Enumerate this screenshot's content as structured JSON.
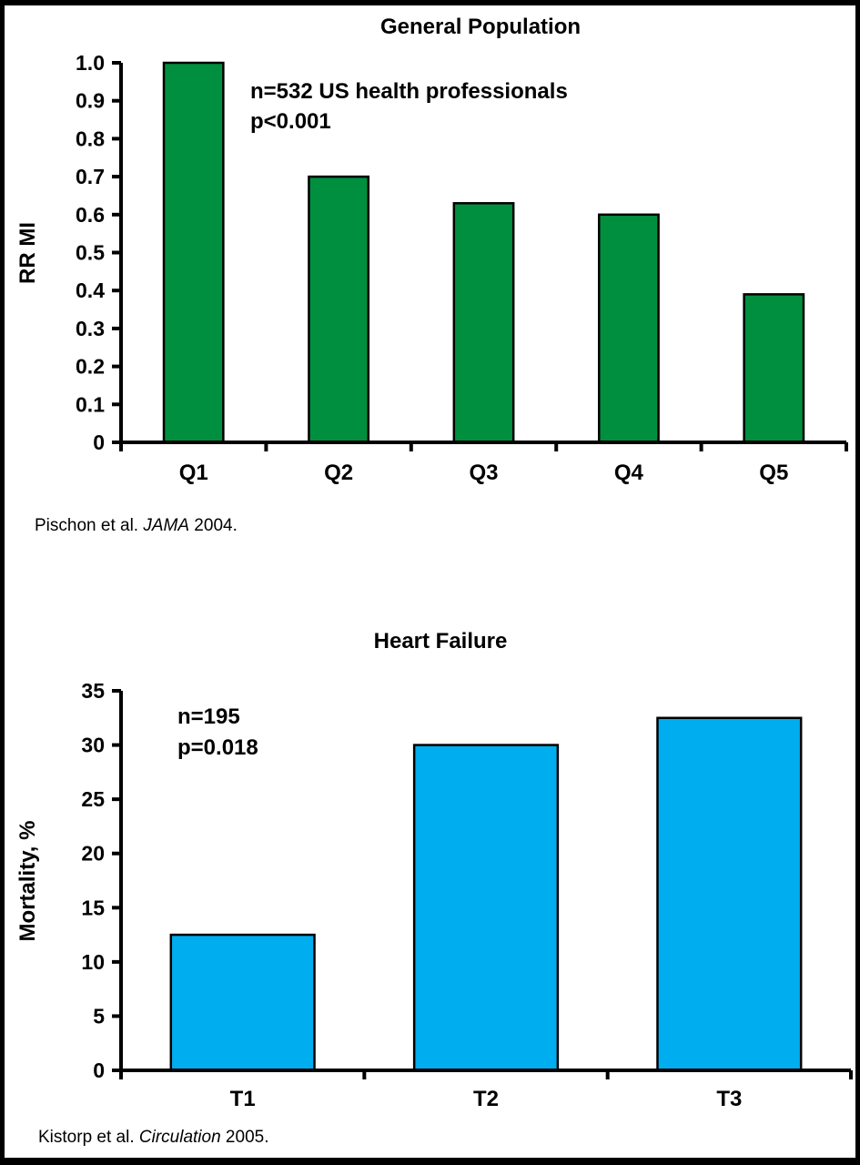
{
  "chart_data": [
    {
      "type": "bar",
      "title": "General Population",
      "ylabel": "RR MI",
      "xlabel": "",
      "categories": [
        "Q1",
        "Q2",
        "Q3",
        "Q4",
        "Q5"
      ],
      "values": [
        1.0,
        0.7,
        0.63,
        0.6,
        0.39
      ],
      "ylim": [
        0,
        1.0
      ],
      "yticks": [
        "0",
        "0.1",
        "0.2",
        "0.3",
        "0.4",
        "0.5",
        "0.6",
        "0.7",
        "0.8",
        "0.9",
        "1.0"
      ],
      "annotations": [
        "n=532 US health professionals",
        "p<0.001"
      ],
      "source": {
        "authors": "Pischon et al. ",
        "journal": "JAMA",
        "year": " 2004."
      },
      "bar_color": "#008f3e",
      "grid": false
    },
    {
      "type": "bar",
      "title": "Heart Failure",
      "ylabel": "Mortality, %",
      "xlabel": "",
      "categories": [
        "T1",
        "T2",
        "T3"
      ],
      "values": [
        12.5,
        30,
        32.5
      ],
      "ylim": [
        0,
        35
      ],
      "yticks": [
        "0",
        "5",
        "10",
        "15",
        "20",
        "25",
        "30",
        "35"
      ],
      "annotations": [
        "n=195",
        "p=0.018"
      ],
      "source": {
        "authors": "Kistorp et al. ",
        "journal": "Circulation",
        "year": " 2005."
      },
      "bar_color": "#00adef",
      "grid": false
    }
  ]
}
